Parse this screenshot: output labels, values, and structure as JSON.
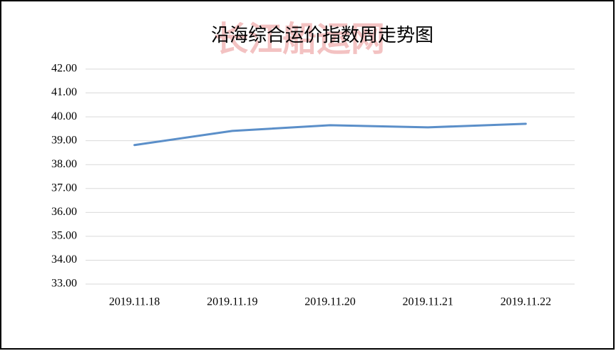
{
  "chart_data": {
    "type": "line",
    "title": "沿海综合运价指数周走势图",
    "watermark": "长江船运网",
    "categories": [
      "2019.11.18",
      "2019.11.19",
      "2019.11.20",
      "2019.11.21",
      "2019.11.22"
    ],
    "values": [
      38.82,
      39.41,
      39.65,
      39.56,
      39.71
    ],
    "color": "#5b8fc9",
    "ylim": [
      33,
      42
    ],
    "yticks": [
      {
        "value": 33,
        "label": "33.00"
      },
      {
        "value": 34,
        "label": "34.00"
      },
      {
        "value": 35,
        "label": "35.00"
      },
      {
        "value": 36,
        "label": "36.00"
      },
      {
        "value": 37,
        "label": "37.00"
      },
      {
        "value": 38,
        "label": "38.00"
      },
      {
        "value": 39,
        "label": "39.00"
      },
      {
        "value": 40,
        "label": "40.00"
      },
      {
        "value": 41,
        "label": "41.00"
      },
      {
        "value": 42,
        "label": "42.00"
      }
    ],
    "grid": true
  }
}
